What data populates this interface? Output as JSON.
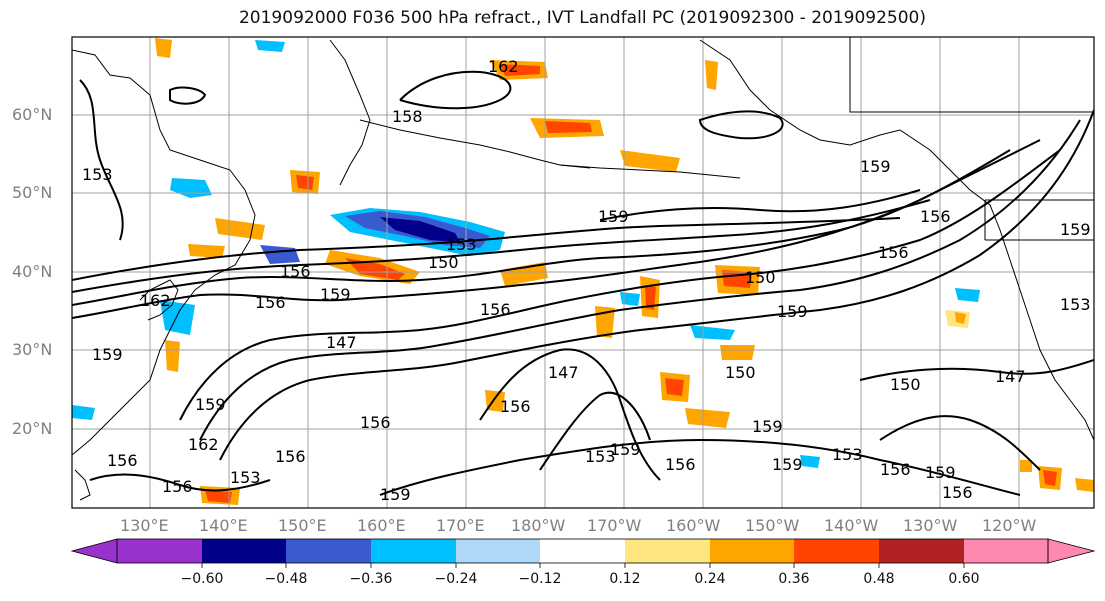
{
  "title": "2019092000 F036 500 hPa refract., IVT Landfall PC (2019092300 - 2019092500)",
  "lat_labels": [
    "60°N",
    "50°N",
    "40°N",
    "30°N",
    "20°N"
  ],
  "lon_labels": [
    "130°E",
    "140°E",
    "150°E",
    "160°E",
    "170°E",
    "180°W",
    "170°W",
    "160°W",
    "150°W",
    "140°W",
    "130°W",
    "120°W"
  ],
  "contour_labels": [
    "162",
    "158",
    "153",
    "159",
    "153",
    "156",
    "150",
    "162",
    "159",
    "156",
    "159",
    "156",
    "147",
    "156",
    "150",
    "156",
    "159",
    "150",
    "153",
    "159",
    "156",
    "147",
    "150",
    "147",
    "156",
    "159",
    "159",
    "156",
    "153",
    "159",
    "156",
    "162",
    "153",
    "156",
    "159",
    "156",
    "159",
    "156",
    "159",
    "159",
    "156",
    "153"
  ],
  "colorbar": {
    "colors": [
      "#9932cc",
      "#00008b",
      "#3a5bd0",
      "#00bfff",
      "#add8f8",
      "#ffffff",
      "#ffe680",
      "#ffa500",
      "#ff4500",
      "#b22222",
      "#ff88b0"
    ],
    "tick_labels": [
      "−0.60",
      "−0.48",
      "−0.36",
      "−0.24",
      "−0.12",
      "0.12",
      "0.24",
      "0.36",
      "0.48",
      "0.60"
    ]
  }
}
